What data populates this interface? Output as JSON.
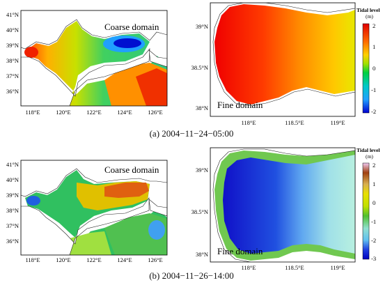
{
  "panels": [
    {
      "id": "a",
      "caption": "(a) 2004−11−24−05:00",
      "coarse_label": "Coarse domain",
      "fine_label": "Fine domain",
      "coarse_lat_ticks": [
        "41°N",
        "40°N",
        "39°N",
        "38°N",
        "37°N",
        "36°N"
      ],
      "coarse_lon_ticks": [
        "118°E",
        "120°E",
        "122°E",
        "124°E",
        "126°E"
      ],
      "fine_lat_ticks": [
        "39°N",
        "38.5°N",
        "38°N"
      ],
      "fine_lon_ticks": [
        "118°E",
        "118.5°E",
        "119°E"
      ],
      "colorbar_title": "Tidal level",
      "colorbar_unit": "(m)",
      "colorbar_ticks": [
        "2",
        "1",
        "0",
        "-1",
        "-2"
      ],
      "colorbar_colors": [
        "#e00000",
        "#ff6a00",
        "#ffd000",
        "#a0e000",
        "#00d040",
        "#00c8c8",
        "#20a0ff",
        "#0000d0"
      ]
    },
    {
      "id": "b",
      "caption": "(b) 2004−11−26−14:00",
      "coarse_label": "Coarse domain",
      "fine_label": "Fine domain",
      "coarse_lat_ticks": [
        "41°N",
        "40°N",
        "39°N",
        "38°N",
        "37°N",
        "36°N"
      ],
      "coarse_lon_ticks": [
        "118°E",
        "120°E",
        "122°E",
        "124°E",
        "126°E"
      ],
      "fine_lat_ticks": [
        "39°N",
        "38.5°N",
        "38°N"
      ],
      "fine_lon_ticks": [
        "118°E",
        "118.5°E",
        "119°E"
      ],
      "colorbar_title": "Tidal level",
      "colorbar_unit": "(m)",
      "colorbar_ticks": [
        "2",
        "1",
        "0",
        "-1",
        "-2",
        "-3"
      ],
      "colorbar_colors": [
        "#f0c8f0",
        "#a04010",
        "#d8b050",
        "#e8e000",
        "#c0e000",
        "#50c030",
        "#90e0d0",
        "#60c0f0",
        "#2040e0",
        "#0000c0"
      ]
    }
  ]
}
